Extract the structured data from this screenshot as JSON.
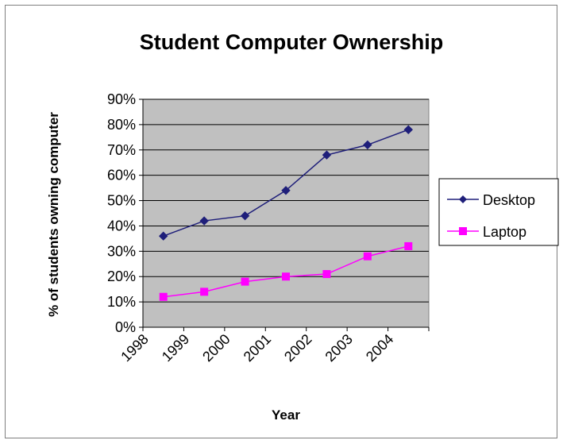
{
  "chart_data": {
    "type": "line",
    "title": "Student Computer Ownership",
    "xlabel": "Year",
    "ylabel": "% of students owning computer",
    "categories": [
      "1998",
      "1999",
      "2000",
      "2001",
      "2002",
      "2003",
      "2004"
    ],
    "ylim": [
      0,
      90
    ],
    "y_ticks": [
      "0%",
      "10%",
      "20%",
      "30%",
      "40%",
      "50%",
      "60%",
      "70%",
      "80%",
      "90%"
    ],
    "grid": true,
    "legend_position": "right",
    "plot_background": "#c0c0c0",
    "series": [
      {
        "name": "Desktop",
        "values": [
          36,
          42,
          44,
          54,
          68,
          72,
          78
        ],
        "color": "#1f1f7a",
        "marker": "diamond"
      },
      {
        "name": "Laptop",
        "values": [
          12,
          14,
          18,
          20,
          21,
          28,
          32
        ],
        "color": "#ff00ff",
        "marker": "square"
      }
    ]
  }
}
